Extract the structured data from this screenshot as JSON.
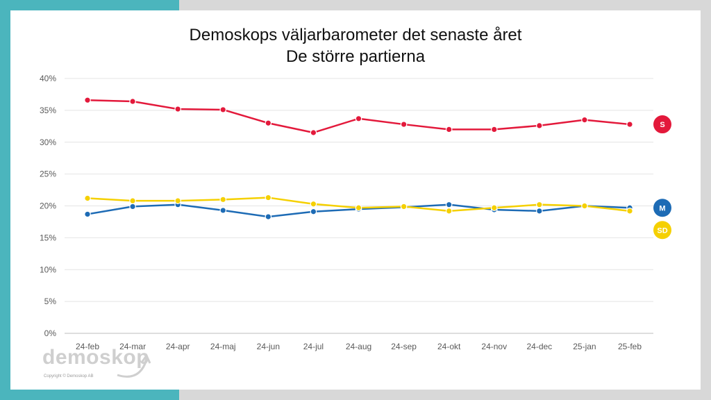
{
  "title_line1": "Demoskops väljarbarometer det senaste året",
  "title_line2": "De större partierna",
  "logo": {
    "word": "demoskop",
    "copyright": "Copyright © Demoskop AB"
  },
  "chart_data": {
    "type": "line",
    "categories": [
      "24-feb",
      "24-mar",
      "24-apr",
      "24-maj",
      "24-jun",
      "24-jul",
      "24-aug",
      "24-sep",
      "24-okt",
      "24-nov",
      "24-dec",
      "25-jan",
      "25-feb"
    ],
    "ylim": [
      0,
      40
    ],
    "yticks": [
      "0%",
      "5%",
      "10%",
      "15%",
      "20%",
      "25%",
      "30%",
      "35%",
      "40%"
    ],
    "grid": true,
    "legend_position": "right",
    "series": [
      {
        "name": "S",
        "color": "#e3193b",
        "label_text_color": "#ffffff",
        "values": [
          36.6,
          36.4,
          35.2,
          35.1,
          33.0,
          31.5,
          33.7,
          32.8,
          32.0,
          32.0,
          32.6,
          33.5,
          32.8
        ]
      },
      {
        "name": "M",
        "color": "#1d6bb5",
        "label_text_color": "#ffffff",
        "values": [
          18.7,
          19.9,
          20.2,
          19.3,
          18.3,
          19.1,
          19.5,
          19.8,
          20.2,
          19.4,
          19.2,
          20.0,
          19.7
        ]
      },
      {
        "name": "SD",
        "color": "#f5d000",
        "label_text_color": "#ffffff",
        "values": [
          21.2,
          20.8,
          20.8,
          21.0,
          21.3,
          20.3,
          19.7,
          19.9,
          19.2,
          19.7,
          20.2,
          20.0,
          19.2
        ]
      }
    ]
  }
}
